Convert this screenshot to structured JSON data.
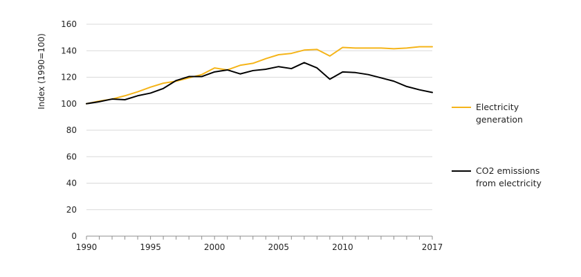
{
  "chart_data": {
    "type": "line",
    "title": "",
    "xlabel": "",
    "ylabel": "Index (1990=100)",
    "x": [
      1990,
      1991,
      1992,
      1993,
      1994,
      1995,
      1996,
      1997,
      1998,
      1999,
      2000,
      2001,
      2002,
      2003,
      2004,
      2005,
      2006,
      2007,
      2008,
      2009,
      2010,
      2011,
      2012,
      2013,
      2014,
      2015,
      2016,
      2017
    ],
    "x_tick_labels": [
      "1990",
      "1995",
      "2000",
      "2005",
      "2010",
      "2017"
    ],
    "x_ticks": [
      1990,
      1995,
      2000,
      2005,
      2010,
      2017
    ],
    "xlim": [
      1990,
      2017
    ],
    "y_tick_labels": [
      "0",
      "20",
      "40",
      "60",
      "80",
      "100",
      "120",
      "140",
      "160"
    ],
    "ylim": [
      0,
      160
    ],
    "grid": "horizontal",
    "legend_position": "right",
    "series": [
      {
        "name": "Electricity generation",
        "legend_lines": [
          "Electricity",
          "generation"
        ],
        "color": "#F5B418",
        "values": [
          100,
          102,
          103.5,
          106,
          109,
          112.5,
          115.5,
          117,
          119.5,
          122,
          127,
          125.5,
          129,
          130.5,
          134,
          137,
          138,
          140.5,
          141,
          136,
          142.5,
          142,
          142,
          142,
          141.5,
          142,
          143,
          143
        ]
      },
      {
        "name": "CO2 emissions from electricity",
        "legend_lines": [
          "CO2 emissions",
          "from electricity"
        ],
        "color": "#000000",
        "values": [
          100,
          101.5,
          103.5,
          103,
          106,
          108,
          111.5,
          117.5,
          120.5,
          120.5,
          124,
          125.5,
          122.5,
          125,
          126,
          128,
          126.5,
          131,
          127,
          118.5,
          124,
          123.5,
          122,
          119.5,
          117,
          113,
          110.5,
          108.5
        ]
      }
    ]
  }
}
